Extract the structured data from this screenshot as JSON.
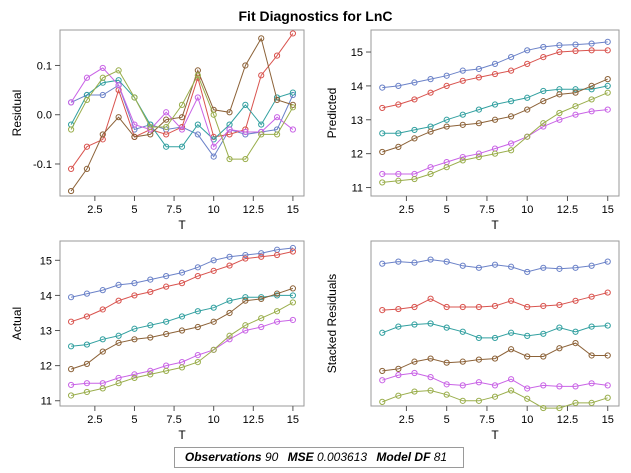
{
  "title": "Fit Diagnostics for LnC",
  "footer": {
    "observations_label": "Observations",
    "observations_value": "90",
    "mse_label": "MSE",
    "mse_value": "0.003613",
    "model_df_label": "Model DF",
    "model_df_value": "81"
  },
  "series_colors": [
    "#6b82c8",
    "#d9544f",
    "#32a0a0",
    "#8c6238",
    "#c964e6",
    "#9aae4c"
  ],
  "chart_data": [
    {
      "type": "line",
      "title": "",
      "xlabel": "T",
      "ylabel": "Residual",
      "xlim": [
        0.3,
        15.7
      ],
      "ylim": [
        -0.165,
        0.172
      ],
      "xticks": [
        "2.5",
        "5",
        "7.5",
        "10",
        "12.5",
        "15"
      ],
      "yticks": [
        "-0.1",
        "0.0",
        "0.1"
      ],
      "grid": false,
      "x": [
        1,
        2,
        3,
        4,
        5,
        6,
        7,
        8,
        9,
        10,
        11,
        12,
        13,
        14,
        15
      ],
      "series": [
        {
          "values": [
            0.025,
            0.04,
            0.04,
            0.06,
            -0.03,
            -0.02,
            -0.03,
            -0.025,
            -0.04,
            -0.085,
            -0.03,
            -0.04,
            -0.035,
            -0.03,
            0.04
          ]
        },
        {
          "values": [
            -0.11,
            -0.065,
            -0.05,
            0.05,
            -0.045,
            -0.03,
            -0.04,
            -0.025,
            0.075,
            -0.045,
            -0.04,
            -0.03,
            0.08,
            0.12,
            0.165
          ]
        },
        {
          "values": [
            -0.02,
            0.04,
            0.065,
            0.07,
            0.035,
            -0.02,
            -0.065,
            -0.065,
            -0.02,
            -0.05,
            -0.02,
            0.02,
            -0.02,
            0.035,
            0.045
          ]
        },
        {
          "values": [
            -0.155,
            -0.11,
            -0.04,
            -0.005,
            -0.045,
            -0.04,
            -0.01,
            -0.005,
            0.09,
            0.01,
            0.005,
            0.1,
            0.155,
            0.03,
            0.02
          ]
        },
        {
          "values": [
            0.025,
            0.075,
            0.095,
            0.06,
            -0.02,
            -0.03,
            0.005,
            -0.03,
            0.035,
            -0.065,
            -0.03,
            -0.035,
            -0.035,
            -0.005,
            -0.03
          ]
        },
        {
          "values": [
            -0.03,
            0.03,
            0.075,
            0.09,
            0.035,
            -0.025,
            -0.025,
            0.02,
            0.08,
            0.0,
            -0.09,
            -0.09,
            -0.04,
            -0.04,
            0.015
          ]
        }
      ]
    },
    {
      "type": "line",
      "title": "",
      "xlabel": "T",
      "ylabel": "Predicted",
      "xlim": [
        0.3,
        15.7
      ],
      "ylim": [
        10.75,
        15.65
      ],
      "xticks": [
        "2.5",
        "5",
        "7.5",
        "10",
        "12.5",
        "15"
      ],
      "yticks": [
        "11",
        "12",
        "13",
        "14",
        "15"
      ],
      "grid": false,
      "x": [
        1,
        2,
        3,
        4,
        5,
        6,
        7,
        8,
        9,
        10,
        11,
        12,
        13,
        14,
        15
      ],
      "series": [
        {
          "values": [
            13.95,
            14.0,
            14.1,
            14.2,
            14.3,
            14.45,
            14.5,
            14.65,
            14.85,
            15.05,
            15.15,
            15.2,
            15.22,
            15.25,
            15.3
          ]
        },
        {
          "values": [
            13.35,
            13.45,
            13.6,
            13.8,
            14.0,
            14.15,
            14.25,
            14.35,
            14.45,
            14.65,
            14.85,
            15.0,
            15.03,
            15.05,
            15.05
          ]
        },
        {
          "values": [
            12.6,
            12.6,
            12.7,
            12.8,
            13.0,
            13.15,
            13.3,
            13.45,
            13.55,
            13.65,
            13.85,
            13.9,
            13.9,
            13.9,
            14.0
          ]
        },
        {
          "values": [
            12.05,
            12.2,
            12.45,
            12.65,
            12.8,
            12.85,
            12.9,
            13.0,
            13.1,
            13.3,
            13.55,
            13.75,
            13.8,
            14.0,
            14.2
          ]
        },
        {
          "values": [
            11.4,
            11.4,
            11.4,
            11.6,
            11.75,
            11.9,
            12.0,
            12.15,
            12.3,
            12.5,
            12.8,
            13.0,
            13.15,
            13.25,
            13.3
          ]
        },
        {
          "values": [
            11.15,
            11.2,
            11.25,
            11.4,
            11.6,
            11.8,
            11.9,
            12.0,
            12.1,
            12.5,
            12.9,
            13.2,
            13.4,
            13.6,
            13.8
          ]
        }
      ]
    },
    {
      "type": "line",
      "title": "",
      "xlabel": "T",
      "ylabel": "Actual",
      "xlim": [
        0.3,
        15.7
      ],
      "ylim": [
        10.85,
        15.55
      ],
      "xticks": [
        "2.5",
        "5",
        "7.5",
        "10",
        "12.5",
        "15"
      ],
      "yticks": [
        "11",
        "12",
        "13",
        "14",
        "15"
      ],
      "grid": false,
      "x": [
        1,
        2,
        3,
        4,
        5,
        6,
        7,
        8,
        9,
        10,
        11,
        12,
        13,
        14,
        15
      ],
      "series": [
        {
          "values": [
            13.95,
            14.05,
            14.15,
            14.3,
            14.35,
            14.45,
            14.55,
            14.65,
            14.8,
            15.0,
            15.1,
            15.15,
            15.2,
            15.3,
            15.35
          ]
        },
        {
          "values": [
            13.25,
            13.4,
            13.6,
            13.85,
            14.0,
            14.1,
            14.25,
            14.35,
            14.55,
            14.7,
            14.85,
            15.05,
            15.1,
            15.15,
            15.25
          ]
        },
        {
          "values": [
            12.55,
            12.6,
            12.75,
            12.85,
            13.05,
            13.15,
            13.25,
            13.4,
            13.55,
            13.65,
            13.85,
            13.95,
            13.95,
            14.0,
            14.0
          ]
        },
        {
          "values": [
            11.9,
            12.05,
            12.4,
            12.65,
            12.75,
            12.8,
            12.9,
            13.0,
            13.1,
            13.25,
            13.5,
            13.85,
            13.9,
            14.05,
            14.2
          ]
        },
        {
          "values": [
            11.45,
            11.5,
            11.5,
            11.65,
            11.75,
            11.85,
            12.0,
            12.1,
            12.3,
            12.45,
            12.75,
            13.0,
            13.1,
            13.25,
            13.3
          ]
        },
        {
          "values": [
            11.15,
            11.25,
            11.35,
            11.5,
            11.65,
            11.75,
            11.85,
            11.95,
            12.1,
            12.45,
            12.85,
            13.15,
            13.35,
            13.55,
            13.8
          ]
        }
      ]
    },
    {
      "type": "line",
      "title": "",
      "xlabel": "T",
      "ylabel": "Stacked Residuals",
      "xlim": [
        0.3,
        15.7
      ],
      "ylim": [
        -0.38,
        1.22
      ],
      "xticks": [
        "2.5",
        "5",
        "7.5",
        "10",
        "12.5",
        "15"
      ],
      "yticks": [],
      "grid": false,
      "x": [
        1,
        2,
        3,
        4,
        5,
        6,
        7,
        8,
        9,
        10,
        11,
        12,
        13,
        14,
        15
      ],
      "series": [
        {
          "values": [
            1.0,
            1.02,
            1.01,
            1.04,
            1.02,
            0.98,
            0.96,
            0.99,
            0.97,
            0.92,
            0.96,
            0.95,
            0.96,
            0.98,
            1.02
          ]
        },
        {
          "values": [
            0.55,
            0.56,
            0.58,
            0.66,
            0.58,
            0.58,
            0.58,
            0.59,
            0.64,
            0.58,
            0.59,
            0.6,
            0.64,
            0.68,
            0.72
          ]
        },
        {
          "values": [
            0.33,
            0.39,
            0.41,
            0.42,
            0.38,
            0.34,
            0.28,
            0.28,
            0.33,
            0.3,
            0.32,
            0.38,
            0.34,
            0.39,
            0.4
          ]
        },
        {
          "values": [
            -0.04,
            -0.02,
            0.05,
            0.08,
            0.04,
            0.05,
            0.07,
            0.08,
            0.17,
            0.1,
            0.1,
            0.18,
            0.23,
            0.11,
            0.11
          ]
        },
        {
          "values": [
            -0.13,
            -0.08,
            -0.06,
            -0.1,
            -0.17,
            -0.18,
            -0.15,
            -0.18,
            -0.12,
            -0.21,
            -0.18,
            -0.19,
            -0.19,
            -0.16,
            -0.18
          ]
        },
        {
          "values": [
            -0.34,
            -0.28,
            -0.24,
            -0.23,
            -0.27,
            -0.33,
            -0.33,
            -0.29,
            -0.23,
            -0.31,
            -0.4,
            -0.4,
            -0.35,
            -0.35,
            -0.3
          ]
        }
      ]
    }
  ]
}
